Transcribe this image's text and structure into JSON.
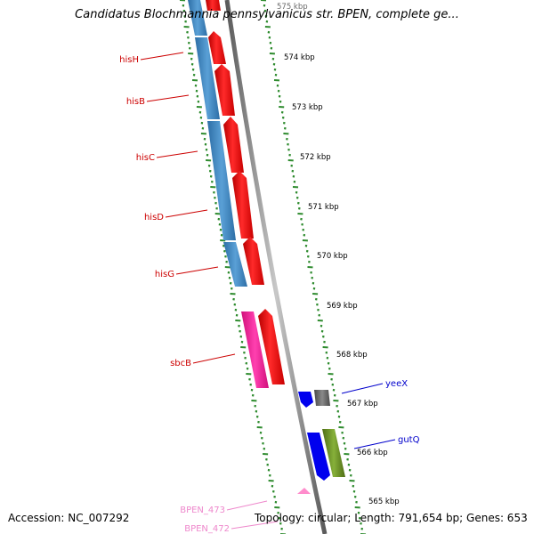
{
  "title": "Candidatus Blochmannia pennsylvanicus str. BPEN, complete ge...",
  "footer": {
    "accession": "Accession: NC_007292",
    "summary": "Topology: circular; Length: 791,654 bp; Genes: 653"
  },
  "kbp_labels": [
    "575 kbp",
    "574 kbp",
    "573 kbp",
    "572 kbp",
    "571 kbp",
    "570 kbp",
    "569 kbp",
    "568 kbp",
    "567 kbp",
    "566 kbp",
    "565 kbp"
  ],
  "genes": {
    "hisH": "hisH",
    "hisB": "hisB",
    "hisC": "hisC",
    "hisD": "hisD",
    "hisG": "hisG",
    "sbcB": "sbcB",
    "yeeX": "yeeX",
    "gutQ": "gutQ",
    "bpen473": "BPEN_473",
    "bpen472": "BPEN_472"
  },
  "colors": {
    "forward_cds": "#ff0000",
    "reverse_cds": "#3b82c0",
    "pink_cds": "#ff2aa0",
    "blue_cds": "#0000ff",
    "gray_cds": "#6e6e6e",
    "olive_cds": "#6b8e23",
    "tick_green": "#2e8b2e",
    "backbone": "#808080",
    "label_red": "#cc0000",
    "label_blue": "#0000cc",
    "label_pink": "#ee88cc"
  }
}
